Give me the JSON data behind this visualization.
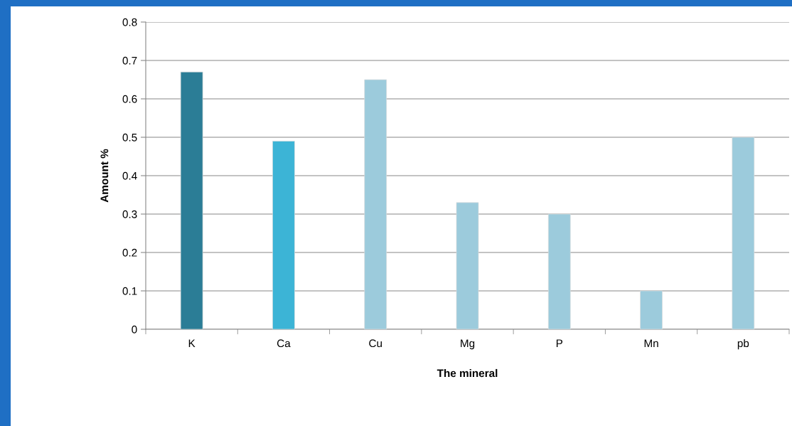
{
  "chart_data": {
    "type": "bar",
    "xlabel": "The mineral",
    "ylabel": "Amount %",
    "categories": [
      "K",
      "Ca",
      "Cu",
      "Mg",
      "P",
      "Mn",
      "pb"
    ],
    "values": [
      0.67,
      0.49,
      0.65,
      0.33,
      0.3,
      0.1,
      0.5
    ],
    "colors": [
      "#2b7d96",
      "#3cb4d6",
      "#9ccbdc",
      "#9ccbdc",
      "#9ccbdc",
      "#9ccbdc",
      "#9ccbdc"
    ],
    "ylim": [
      0,
      0.8
    ],
    "yticks": [
      0,
      0.1,
      0.2,
      0.3,
      0.4,
      0.5,
      0.6,
      0.7,
      0.8
    ],
    "grid": "y",
    "legend": false
  }
}
